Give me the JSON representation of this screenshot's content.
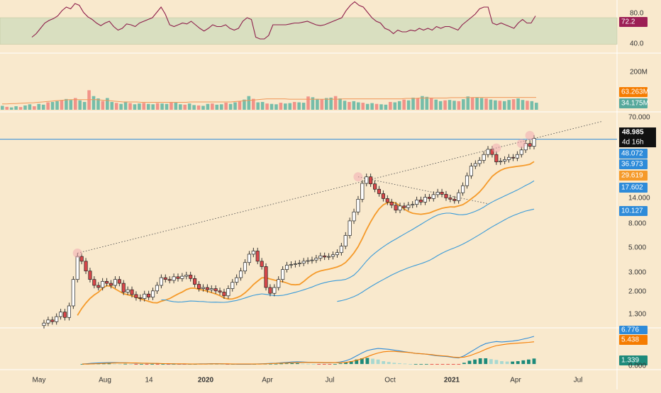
{
  "chart_data": {
    "type": "candlestick",
    "y_scale": "log",
    "x_ticks": [
      "May",
      "Aug",
      "14",
      "2020",
      "Apr",
      "Jul",
      "Oct",
      "2021",
      "Apr",
      "Jul"
    ],
    "x_tick_bold": [
      "2020",
      "2021"
    ],
    "panels": {
      "rsi": {
        "ticks": [
          "80.0",
          "40.0"
        ],
        "band": [
          40,
          70
        ],
        "ylim": [
          30,
          90
        ],
        "badge": "72.2",
        "values": [
          48,
          52,
          58,
          64,
          67,
          69,
          72,
          78,
          82,
          80,
          86,
          84,
          76,
          71,
          68,
          64,
          61,
          64,
          66,
          60,
          56,
          58,
          63,
          62,
          60,
          64,
          66,
          68,
          70,
          76,
          82,
          74,
          62,
          60,
          62,
          64,
          63,
          66,
          62,
          58,
          55,
          58,
          62,
          60,
          60,
          62,
          58,
          56,
          58,
          66,
          70,
          68,
          48,
          46,
          46,
          50,
          62,
          62,
          62,
          62,
          63,
          64,
          64,
          65,
          66,
          64,
          62,
          61,
          62,
          64,
          66,
          68,
          70,
          78,
          84,
          88,
          84,
          82,
          76,
          70,
          66,
          64,
          58,
          56,
          52,
          56,
          54,
          54,
          56,
          55,
          58,
          56,
          58,
          56,
          60,
          58,
          60,
          60,
          58,
          56,
          62,
          66,
          70,
          74,
          80,
          82,
          82,
          64,
          62,
          64,
          62,
          60,
          58,
          64,
          68,
          64,
          64,
          72
        ],
        "colors": {
          "line": "#8e1e4b",
          "band_fill": "#d9dfc0",
          "badge_bg": "#9c1f55"
        }
      },
      "volume": {
        "ticks": [
          "200M"
        ],
        "badges": [
          {
            "label": "63.263M",
            "color": "#f57c00",
            "text_color": "#ffffff",
            "value": 63.263
          },
          {
            "label": "34.175M",
            "color": "#56a99c",
            "text_color": "#ffffff",
            "value": 34.175
          }
        ],
        "ylim": [
          0,
          290
        ],
        "values": [
          20,
          15,
          12,
          18,
          14,
          22,
          28,
          18,
          30,
          26,
          38,
          40,
          44,
          48,
          55,
          50,
          60,
          48,
          40,
          100,
          70,
          58,
          45,
          60,
          40,
          35,
          30,
          42,
          34,
          28,
          32,
          35,
          30,
          28,
          34,
          32,
          30,
          40,
          36,
          28,
          26,
          32,
          24,
          22,
          20,
          30,
          32,
          26,
          28,
          36,
          30,
          38,
          44,
          52,
          70,
          56,
          38,
          40,
          32,
          30,
          28,
          36,
          32,
          34,
          40,
          38,
          36,
          68,
          64,
          56,
          54,
          60,
          62,
          70,
          58,
          46,
          40,
          44,
          38,
          36,
          30,
          34,
          30,
          28,
          26,
          40,
          38,
          44,
          52,
          48,
          62,
          58,
          70,
          66,
          60,
          52,
          44,
          48,
          50,
          46,
          44,
          54,
          68,
          62,
          64,
          60,
          58,
          52,
          48,
          46,
          44,
          50,
          54,
          58,
          50,
          46,
          44,
          36
        ],
        "sma": [
          30,
          30,
          31,
          32,
          33,
          34,
          35,
          36,
          38,
          40,
          42,
          44,
          46,
          48,
          50,
          52,
          52,
          52,
          52,
          52,
          52,
          52,
          50,
          48,
          46,
          44,
          42,
          40,
          40,
          40,
          40,
          38,
          38,
          38,
          38,
          38,
          38,
          38,
          38,
          38,
          38,
          38,
          40,
          40,
          40,
          40,
          40,
          40,
          40,
          40,
          40,
          40,
          42,
          44,
          46,
          48,
          50,
          52,
          54,
          56,
          56,
          56,
          56,
          56,
          54,
          54,
          54,
          54,
          54,
          54,
          54,
          54,
          54,
          54,
          54,
          54,
          56,
          56,
          56,
          56,
          56,
          56,
          56,
          56,
          56,
          56,
          56,
          56,
          56,
          56,
          58,
          58,
          58,
          60,
          60,
          60,
          60,
          60,
          60,
          60,
          62,
          62,
          62,
          62,
          62,
          63,
          63,
          63,
          63,
          63,
          63,
          63,
          63,
          63,
          63,
          63,
          63,
          63,
          63,
          63
        ],
        "colors": {
          "up": "#76bda9",
          "down": "#f29389",
          "sma": "#f0975a"
        }
      },
      "price": {
        "ticks": [
          "70.000",
          "14.000",
          "8.000",
          "5.000",
          "3.000",
          "2.000",
          "1.300"
        ],
        "ylim": [
          0.95,
          85
        ],
        "last_price": {
          "label": "48.985",
          "countdown": "4d 16h",
          "value": 48.985
        },
        "hline": {
          "label": "48.072",
          "value": 48.072,
          "color": "#2e8bd9"
        },
        "ma_badges": [
          {
            "label": "36.973",
            "value": 36.973,
            "color": "#2e8bd9"
          },
          {
            "label": "29.619",
            "value": 29.619,
            "color": "#f59a2a"
          },
          {
            "label": "17.602",
            "value": 17.602,
            "color": "#2e8bd9"
          },
          {
            "label": "10.127",
            "value": 10.127,
            "color": "#2e8bd9"
          }
        ],
        "closes": [
          1.05,
          1.12,
          1.08,
          1.2,
          1.32,
          1.18,
          1.5,
          2.6,
          4.2,
          3.8,
          3.1,
          2.6,
          2.3,
          2.2,
          2.5,
          2.4,
          2.3,
          2.6,
          2.4,
          2.0,
          2.1,
          1.9,
          1.78,
          1.75,
          1.92,
          1.8,
          2.05,
          2.3,
          2.7,
          2.6,
          2.55,
          2.75,
          2.65,
          2.78,
          2.85,
          2.65,
          2.35,
          2.15,
          2.2,
          2.1,
          2.15,
          2.05,
          2.0,
          1.85,
          2.15,
          2.45,
          2.7,
          3.1,
          3.7,
          4.4,
          4.7,
          3.8,
          3.4,
          2.2,
          1.95,
          2.2,
          2.6,
          3.2,
          3.5,
          3.55,
          3.6,
          3.65,
          3.8,
          3.85,
          3.9,
          4.05,
          4.25,
          4.15,
          4.2,
          4.35,
          4.55,
          5.2,
          6.5,
          8.8,
          10.6,
          13.8,
          19.2,
          22.0,
          19.0,
          17.0,
          15.5,
          14.0,
          13.0,
          12.2,
          11.0,
          12.0,
          11.6,
          12.2,
          12.4,
          13.6,
          13.0,
          14.4,
          14.0,
          15.2,
          16.0,
          15.3,
          14.2,
          13.8,
          13.4,
          15.8,
          18.3,
          22.5,
          27.5,
          29.0,
          31.0,
          35.0,
          39.0,
          35.0,
          30.0,
          30.5,
          31.5,
          33.0,
          32.5,
          35.0,
          38.5,
          44.0,
          41.5,
          48.985
        ],
        "up_color": "#ffffff",
        "down_color": "#d8474a",
        "trendline_color": "#555555",
        "ema_color": "#f59a2a",
        "sma_color": "#3a9bd9"
      },
      "macd": {
        "ticks": [
          "0.000"
        ],
        "badges": [
          {
            "label": "6.776",
            "color": "#2e8bd9",
            "value": 6.776
          },
          {
            "label": "5.438",
            "color": "#f57c00",
            "value": 5.438
          },
          {
            "label": "1.339",
            "color": "#1d8a7a",
            "value": 1.339
          }
        ],
        "ylim": [
          -1.2,
          8.5
        ],
        "macd_line": [
          0.0,
          0.1,
          0.2,
          0.25,
          0.3,
          0.35,
          0.35,
          0.3,
          0.3,
          0.25,
          0.2,
          0.2,
          0.15,
          0.15,
          0.1,
          0.1,
          0.05,
          0.05,
          0.0,
          0.0,
          0.0,
          0.0,
          0.05,
          0.05,
          0.1,
          0.1,
          0.05,
          0.0,
          0.0,
          -0.05,
          -0.05,
          -0.05,
          0.0,
          0.05,
          0.1,
          0.15,
          0.2,
          0.3,
          0.4,
          0.5,
          0.55,
          0.5,
          0.45,
          0.4,
          0.35,
          0.3,
          0.3,
          0.35,
          0.5,
          0.8,
          1.3,
          2.0,
          2.7,
          3.3,
          3.6,
          3.8,
          3.7,
          3.6,
          3.4,
          3.2,
          3.0,
          2.8,
          2.6,
          2.5,
          2.4,
          2.2,
          2.0,
          1.9,
          1.8,
          1.6,
          1.5,
          2.0,
          2.8,
          3.6,
          4.4,
          5.0,
          5.3,
          5.5,
          5.4,
          5.5,
          5.6,
          5.8,
          6.1,
          6.4,
          6.776
        ],
        "signal_line": [
          0.0,
          0.0,
          0.05,
          0.1,
          0.15,
          0.2,
          0.25,
          0.25,
          0.25,
          0.25,
          0.25,
          0.2,
          0.2,
          0.15,
          0.15,
          0.1,
          0.1,
          0.05,
          0.05,
          0.05,
          0.0,
          0.0,
          0.0,
          0.0,
          0.05,
          0.05,
          0.05,
          0.05,
          0.0,
          0.0,
          0.0,
          0.0,
          0.0,
          0.0,
          0.05,
          0.1,
          0.15,
          0.2,
          0.25,
          0.3,
          0.35,
          0.4,
          0.4,
          0.4,
          0.4,
          0.35,
          0.35,
          0.35,
          0.35,
          0.4,
          0.6,
          0.9,
          1.3,
          1.8,
          2.3,
          2.7,
          3.0,
          3.1,
          3.1,
          3.0,
          2.9,
          2.8,
          2.6,
          2.5,
          2.4,
          2.3,
          2.1,
          2.0,
          1.9,
          1.7,
          1.6,
          1.7,
          2.0,
          2.5,
          3.0,
          3.6,
          4.1,
          4.5,
          4.7,
          4.9,
          5.0,
          5.1,
          5.2,
          5.3,
          5.438
        ],
        "histogram": [
          0.0,
          0.05,
          0.1,
          0.1,
          0.1,
          0.1,
          0.08,
          0.05,
          0.05,
          0.0,
          -0.05,
          0.0,
          -0.05,
          0.0,
          -0.05,
          0.0,
          -0.05,
          0.0,
          -0.05,
          -0.05,
          0.0,
          0.0,
          0.05,
          0.05,
          0.05,
          0.05,
          0.0,
          -0.05,
          0.0,
          -0.05,
          -0.05,
          -0.05,
          0.0,
          0.05,
          0.05,
          0.05,
          0.05,
          0.1,
          0.15,
          0.2,
          0.2,
          0.1,
          0.05,
          0.0,
          -0.05,
          -0.05,
          -0.05,
          0.0,
          0.15,
          0.4,
          0.7,
          1.1,
          1.4,
          1.5,
          1.3,
          1.1,
          0.7,
          0.5,
          0.3,
          0.2,
          0.1,
          0.0,
          0.0,
          0.0,
          0.0,
          -0.1,
          -0.1,
          -0.1,
          -0.1,
          -0.1,
          -0.1,
          0.3,
          0.8,
          1.1,
          1.4,
          1.4,
          1.2,
          1.0,
          0.7,
          0.6,
          0.6,
          0.7,
          0.9,
          1.1,
          1.339
        ],
        "colors": {
          "macd": "#2e8bd9",
          "signal": "#f57c00",
          "hist_up_strong": "#1d8a7a",
          "hist_up_weak": "#a8d8d0",
          "hist_down_strong": "#e53935",
          "hist_down_weak": "#f4a9a8"
        }
      }
    }
  }
}
